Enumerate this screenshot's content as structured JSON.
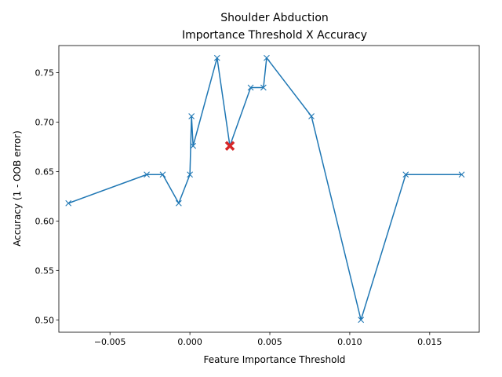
{
  "chart_data": {
    "type": "line",
    "title": "Shoulder Abduction",
    "subtitle": "Importance Threshold X Accuracy",
    "xlabel": "Feature Importance Threshold",
    "ylabel": "Accuracy (1 - OOB error)",
    "xlim": [
      -0.0082,
      0.0181
    ],
    "ylim": [
      0.4875,
      0.7775
    ],
    "xticks": [
      -0.005,
      0.0,
      0.005,
      0.01,
      0.015
    ],
    "xtick_labels": [
      "−0.005",
      "0.000",
      "0.005",
      "0.010",
      "0.015"
    ],
    "yticks": [
      0.5,
      0.55,
      0.6,
      0.65,
      0.7,
      0.75
    ],
    "ytick_labels": [
      "0.50",
      "0.55",
      "0.60",
      "0.65",
      "0.70",
      "0.75"
    ],
    "grid": false,
    "series": [
      {
        "color": "#1f77b4",
        "marker": "x",
        "points": [
          [
            -0.0076,
            0.618
          ],
          [
            -0.0027,
            0.647
          ],
          [
            -0.0017,
            0.647
          ],
          [
            -0.0007,
            0.618
          ],
          [
            0.0,
            0.647
          ],
          [
            0.0001,
            0.706
          ],
          [
            0.0002,
            0.676
          ],
          [
            0.0017,
            0.765
          ],
          [
            0.0025,
            0.676
          ],
          [
            0.0038,
            0.735
          ],
          [
            0.0046,
            0.735
          ],
          [
            0.0048,
            0.765
          ],
          [
            0.0076,
            0.706
          ],
          [
            0.0107,
            0.5
          ],
          [
            0.0135,
            0.647
          ],
          [
            0.017,
            0.647
          ]
        ]
      }
    ],
    "highlight": {
      "x": 0.0025,
      "y": 0.676,
      "color": "#d62728",
      "marker": "X"
    }
  }
}
